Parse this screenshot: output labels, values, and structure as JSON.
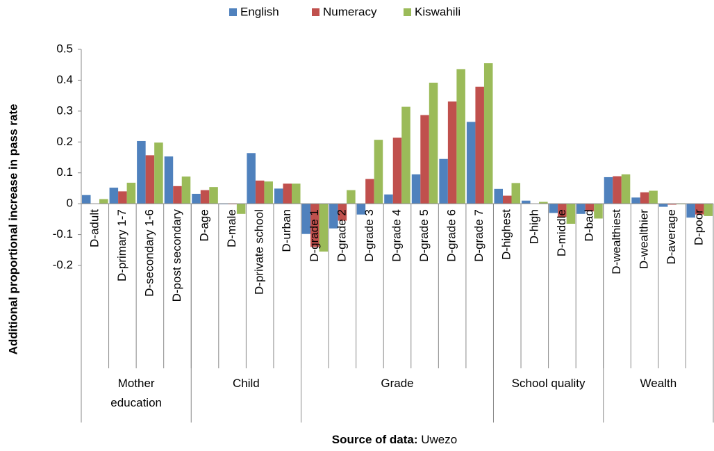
{
  "chart_data": {
    "type": "bar",
    "ylabel": "Additional proportional increase in pass rate",
    "xlabel_parts": [
      "Source of data:",
      "Uwezo"
    ],
    "categories": [
      "D-adult",
      "D-primary 1-7",
      "D-secondary 1-6",
      "D-post secondary",
      "D-age",
      "D-male",
      "D-private school",
      "D-urban",
      "D-grade 1",
      "D-grade 2",
      "D-grade 3",
      "D-grade 4",
      "D-grade 5",
      "D-grade 6",
      "D-grade 7",
      "D-highest",
      "D-high",
      "D-middle",
      "D-bad",
      "D-wealthiest",
      "D-wealthier",
      "D-average",
      "D-poor"
    ],
    "groups": [
      {
        "name": "Mother education",
        "count": 4
      },
      {
        "name": "Child",
        "count": 4
      },
      {
        "name": "Grade",
        "count": 7
      },
      {
        "name": "School quality",
        "count": 4
      },
      {
        "name": "Wealth",
        "count": 4
      }
    ],
    "series": [
      {
        "name": "English",
        "color": "#4f81bd",
        "values": [
          0.028,
          0.052,
          0.203,
          0.153,
          0.032,
          -0.002,
          0.164,
          0.049,
          -0.098,
          -0.08,
          -0.035,
          0.03,
          0.095,
          0.145,
          0.265,
          0.048,
          0.01,
          -0.03,
          -0.033,
          0.086,
          0.02,
          -0.01,
          -0.045
        ]
      },
      {
        "name": "Numeracy",
        "color": "#c0504d",
        "values": [
          0.0,
          0.04,
          0.157,
          0.057,
          0.044,
          -0.002,
          0.075,
          0.065,
          -0.14,
          -0.055,
          0.08,
          0.214,
          0.287,
          0.331,
          0.379,
          0.026,
          0.0,
          -0.043,
          -0.025,
          0.089,
          0.037,
          -0.003,
          -0.035
        ]
      },
      {
        "name": "Kiswahili",
        "color": "#9bbb59",
        "values": [
          0.015,
          0.068,
          0.198,
          0.088,
          0.054,
          -0.033,
          0.072,
          0.065,
          -0.155,
          0.044,
          0.207,
          0.314,
          0.392,
          0.436,
          0.455,
          0.067,
          0.006,
          -0.065,
          -0.048,
          0.095,
          0.042,
          -0.002,
          -0.04
        ]
      }
    ],
    "ylim": [
      -0.2,
      0.5
    ],
    "yticks": [
      -0.2,
      -0.1,
      0,
      0.1,
      0.2,
      0.3,
      0.4,
      0.5
    ],
    "grid": false,
    "legend": "top"
  }
}
